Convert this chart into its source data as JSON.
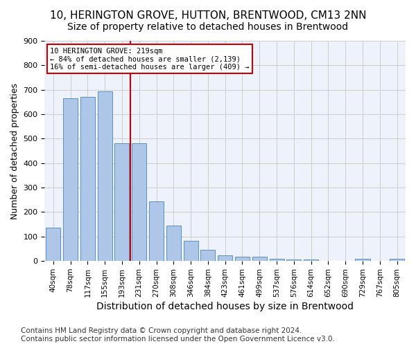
{
  "title1": "10, HERINGTON GROVE, HUTTON, BRENTWOOD, CM13 2NN",
  "title2": "Size of property relative to detached houses in Brentwood",
  "xlabel": "Distribution of detached houses by size in Brentwood",
  "ylabel": "Number of detached properties",
  "bar_labels": [
    "40sqm",
    "78sqm",
    "117sqm",
    "155sqm",
    "193sqm",
    "231sqm",
    "270sqm",
    "308sqm",
    "346sqm",
    "384sqm",
    "423sqm",
    "461sqm",
    "499sqm",
    "537sqm",
    "576sqm",
    "614sqm",
    "652sqm",
    "690sqm",
    "729sqm",
    "767sqm",
    "805sqm"
  ],
  "bar_values": [
    135,
    665,
    670,
    693,
    480,
    480,
    245,
    145,
    83,
    47,
    23,
    18,
    17,
    10,
    7,
    7,
    0,
    0,
    8,
    0,
    8
  ],
  "bar_color": "#aec6e8",
  "bar_edge_color": "#5a8fc2",
  "vline_x": 4.5,
  "vline_color": "#cc0000",
  "annotation_box_text": "10 HERINGTON GROVE: 219sqm\n← 84% of detached houses are smaller (2,139)\n16% of semi-detached houses are larger (409) →",
  "ylim": [
    0,
    900
  ],
  "yticks": [
    0,
    100,
    200,
    300,
    400,
    500,
    600,
    700,
    800,
    900
  ],
  "bg_color": "#eef2fb",
  "footer": "Contains HM Land Registry data © Crown copyright and database right 2024.\nContains public sector information licensed under the Open Government Licence v3.0.",
  "title1_fontsize": 11,
  "title2_fontsize": 10,
  "xlabel_fontsize": 10,
  "ylabel_fontsize": 9,
  "footer_fontsize": 7.5,
  "tick_fontsize": 7.5,
  "ytick_fontsize": 8
}
